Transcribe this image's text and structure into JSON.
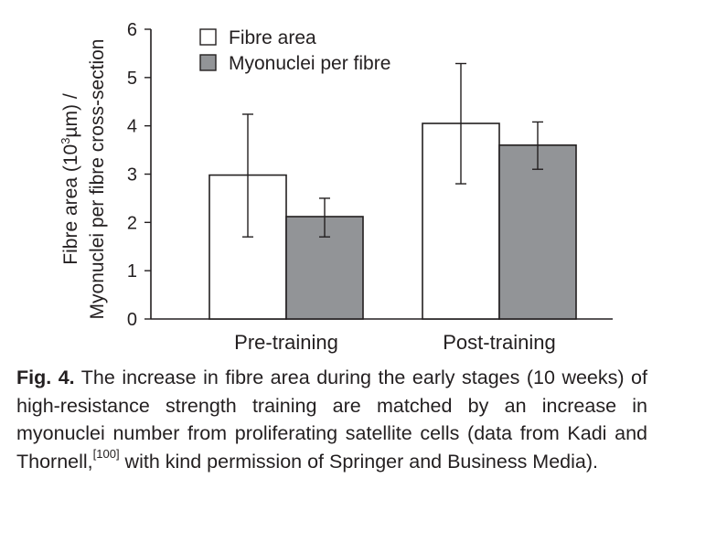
{
  "chart_data": {
    "type": "bar",
    "categories": [
      "Pre-training",
      "Post-training"
    ],
    "series": [
      {
        "name": "Fibre area",
        "values": [
          2.98,
          4.05
        ],
        "error_low": [
          1.7,
          2.8
        ],
        "error_high": [
          4.24,
          5.29
        ],
        "color": "#ffffff"
      },
      {
        "name": "Myonuclei per fibre",
        "values": [
          2.12,
          3.6
        ],
        "error_low": [
          1.7,
          3.1
        ],
        "error_high": [
          2.5,
          4.08
        ],
        "color": "#929497"
      }
    ],
    "ylabel_line1_pre": "Fibre area (10",
    "ylabel_line1_sup": "3",
    "ylabel_line1_post": "µm) /",
    "ylabel_line2": "Myonuclei per fibre cross-section",
    "ylim": [
      0,
      6
    ],
    "yticks": [
      0,
      1,
      2,
      3,
      4,
      5,
      6
    ],
    "legend_position": "top-left",
    "grid": false
  },
  "caption": {
    "label": "Fig. 4.",
    "text_before_ref": " The increase in fibre area during the early stages (10 weeks) of high-resistance strength training are matched by an increase in myonuclei number from proliferating satellite cells (data from Kadi and Thornell,",
    "ref": "[100]",
    "text_after_ref": " with kind permission of Springer and Business Media)."
  }
}
